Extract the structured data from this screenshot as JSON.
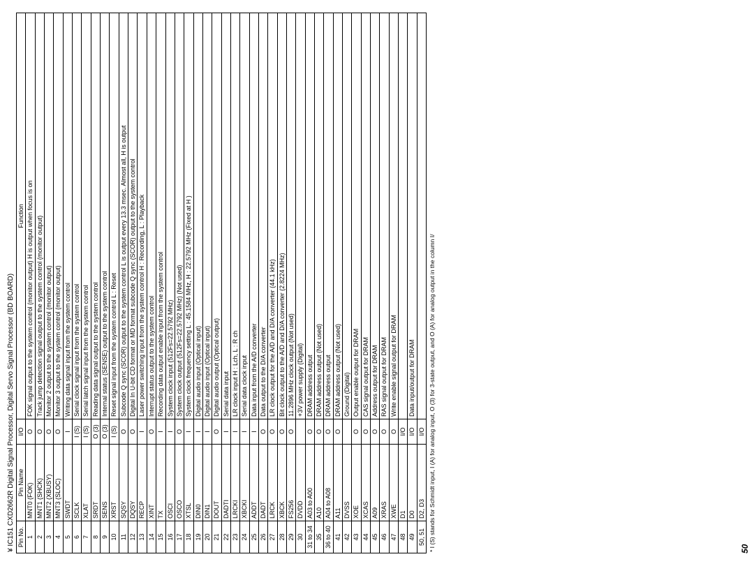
{
  "title": "¥ IC151 CXD2662R Digital Signal Processor, Digital Servo Signal Processor (BD BOARD)",
  "headers": {
    "pin": "Pin No.",
    "name": "Pin Name",
    "io": "I/O",
    "func": "Function"
  },
  "rows": [
    {
      "pin": "1",
      "name": "MNT0 (FOK)",
      "io": "O",
      "func": "FOK signal output to the system control (monitor output)  H  is output when focus is on"
    },
    {
      "pin": "2",
      "name": "MNT1 (SHCK)",
      "io": "O",
      "func": "Track jump detection signal output to the system control (monitor output)"
    },
    {
      "pin": "3",
      "name": "MNT2 (XBUSY)",
      "io": "O",
      "func": "Monitor 2 output to the system control (monitor output)"
    },
    {
      "pin": "4",
      "name": "MNT3 (SLOC)",
      "io": "O",
      "func": "Monitor 3 output to the system control (monitor output)"
    },
    {
      "pin": "5",
      "name": "SWDT",
      "io": "I",
      "func": "Writing data signal input from the system control"
    },
    {
      "pin": "6",
      "name": "SCLK",
      "io": "I (S)",
      "func": "Serial clock signal input from the system control"
    },
    {
      "pin": "7",
      "name": "XLAT",
      "io": "I (S)",
      "func": "Serial latch signal input from the system control"
    },
    {
      "pin": "8",
      "name": "SRDT",
      "io": "O (3)",
      "func": "Reading data signal output to the system control"
    },
    {
      "pin": "9",
      "name": "SENS",
      "io": "O (3)",
      "func": "Internal status (SENSE) output to the system control"
    },
    {
      "pin": "10",
      "name": "XRST",
      "io": "I (S)",
      "func": "Reset signal input from the system control   L : Reset"
    },
    {
      "pin": "11",
      "name": "SQSY",
      "io": "O",
      "func": "Subcode Q sync (SCOR) output to the system control  L  is output every 13.3 msec. Almost all,  H  is output"
    },
    {
      "pin": "12",
      "name": "DQSY",
      "io": "O",
      "func": "Digital In U-bit CD format or MD format subcode Q sync (SCOR) output to the system control"
    },
    {
      "pin": "13",
      "name": "RECP",
      "io": "I",
      "func": "Laser power switching input from the system control   H : Recording,   L : Playback"
    },
    {
      "pin": "14",
      "name": "XINT",
      "io": "O",
      "func": "Interrupt status output to the system control"
    },
    {
      "pin": "15",
      "name": "TX",
      "io": "I",
      "func": "Recording data output enable input from the system control"
    },
    {
      "pin": "16",
      "name": "OSCI",
      "io": "I",
      "func": "System clock input (512Fs=22.5792 MHz)"
    },
    {
      "pin": "17",
      "name": "OSCO",
      "io": "O",
      "func": "System clock output (512Fs=22.5792 MHz) (Not used)"
    },
    {
      "pin": "18",
      "name": "XTSL",
      "io": "I",
      "func": "System clock frequency setting   L : 45.1584 MHz,   H : 22.5792 MHz (Fixed at  H )"
    },
    {
      "pin": "19",
      "name": "DIN0",
      "io": "I",
      "func": "Digital audio input (Optical input)"
    },
    {
      "pin": "20",
      "name": "DIN1",
      "io": "I",
      "func": "Digital audio input (Optical input)"
    },
    {
      "pin": "21",
      "name": "DOUT",
      "io": "O",
      "func": "Digital audio output (Optical output)"
    },
    {
      "pin": "22",
      "name": "DADTI",
      "io": "I",
      "func": "Serial data input"
    },
    {
      "pin": "23",
      "name": "LRCKI",
      "io": "I",
      "func": "LR clock input     H : Lch,   L : R ch"
    },
    {
      "pin": "24",
      "name": "XBCKI",
      "io": "I",
      "func": "Serial data clock input"
    },
    {
      "pin": "25",
      "name": "ADDT",
      "io": "I",
      "func": "Data input from the A/D converter"
    },
    {
      "pin": "26",
      "name": "DADT",
      "io": "O",
      "func": "Data output to the D/A converter"
    },
    {
      "pin": "27",
      "name": "LRCK",
      "io": "O",
      "func": "LR clock output for the A/D and D/A converter (44.1 kHz)"
    },
    {
      "pin": "28",
      "name": "XBCK",
      "io": "O",
      "func": "Bit clock output to the A/D and D/A converter (2.8224 MHz)"
    },
    {
      "pin": "29",
      "name": "FS256",
      "io": "O",
      "func": "11.2896 MHz clock output (Not used)"
    },
    {
      "pin": "30",
      "name": "DVDD",
      "io": "",
      "func": "+3V power supply (Digital)"
    },
    {
      "pin": "31 to 34",
      "name": "A03 to A00",
      "io": "O",
      "func": "DRAM  address output"
    },
    {
      "pin": "35",
      "name": "A10",
      "io": "O",
      "func": "DRAM  address output (Not used)"
    },
    {
      "pin": "36 to 40",
      "name": "A04 to A08",
      "io": "O",
      "func": "DRAM  address output"
    },
    {
      "pin": "41",
      "name": "A11",
      "io": "O",
      "func": "DRAM  address output (Not used)"
    },
    {
      "pin": "42",
      "name": "DVSS",
      "io": "",
      "func": "Ground (Digital)"
    },
    {
      "pin": "43",
      "name": "XOE",
      "io": "O",
      "func": "Output enable output for DRAM"
    },
    {
      "pin": "44",
      "name": "XCAS",
      "io": "O",
      "func": "CAS signal output for DRAM"
    },
    {
      "pin": "45",
      "name": "A09",
      "io": "O",
      "func": "Address output for DRAM"
    },
    {
      "pin": "46",
      "name": "XRAS",
      "io": "O",
      "func": "RAS signal output for DRAM"
    },
    {
      "pin": "47",
      "name": "XWE",
      "io": "O",
      "func": "Write enable signal output for DRAM"
    },
    {
      "pin": "48",
      "name": "D1",
      "io": "I/O",
      "func": ""
    },
    {
      "pin": "49",
      "name": "D0",
      "io": "I/O",
      "func": "Data input/output for DRAM"
    },
    {
      "pin": "50, 51",
      "name": "D2, D3",
      "io": "I/O",
      "func": ""
    }
  ],
  "footnote": "* I (S) stands for Schmidt input, I (A) for analog input, O (3) for 3-state output, and O (A) for analog output in the column I/",
  "pagenum": "50",
  "style": {
    "text_color": "#000000",
    "background_color": "#ffffff",
    "border_color": "#000000",
    "title_fontsize": 10,
    "cell_fontsize": 9,
    "footnote_fontsize": 8.5,
    "pagenum_fontsize": 12
  }
}
